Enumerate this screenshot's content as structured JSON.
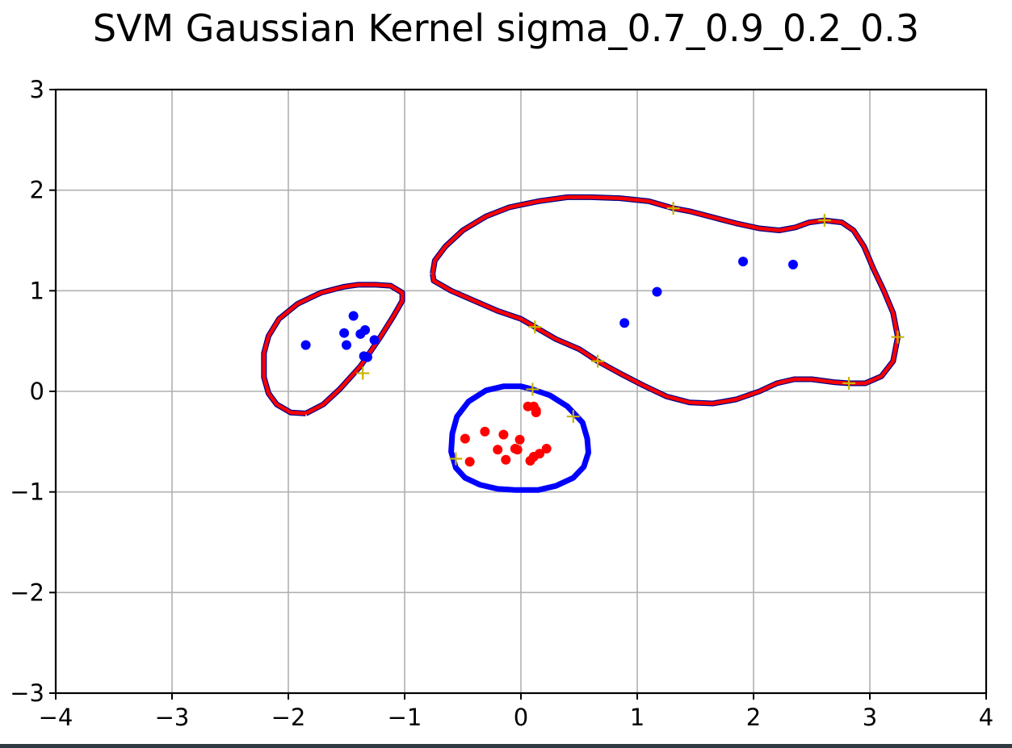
{
  "chart_data": {
    "type": "scatter",
    "title": "SVM Gaussian Kernel sigma_0.7_0.9_0.2_0.3",
    "xlabel": "",
    "ylabel": "",
    "xlim": [
      -4,
      4
    ],
    "ylim": [
      -3,
      3
    ],
    "grid": true,
    "x_ticks": [
      -4,
      -3,
      -2,
      -1,
      0,
      1,
      2,
      3,
      4
    ],
    "x_tick_labels": [
      "−4",
      "−3",
      "−2",
      "−1",
      "0",
      "1",
      "2",
      "3",
      "4"
    ],
    "y_ticks": [
      -3,
      -2,
      -1,
      0,
      1,
      2,
      3
    ],
    "y_tick_labels": [
      "−3",
      "−2",
      "−1",
      "0",
      "1",
      "2",
      "3"
    ],
    "series": [
      {
        "color": "#0000ff",
        "marker": "dot",
        "points": [
          [
            -1.44,
            0.75
          ],
          [
            -1.52,
            0.58
          ],
          [
            -1.38,
            0.57
          ],
          [
            -1.34,
            0.61
          ],
          [
            -1.5,
            0.46
          ],
          [
            -1.26,
            0.51
          ],
          [
            -1.35,
            0.35
          ],
          [
            -1.32,
            0.34
          ],
          [
            -1.85,
            0.46
          ],
          [
            0.89,
            0.68
          ],
          [
            1.17,
            0.99
          ],
          [
            1.91,
            1.29
          ],
          [
            2.34,
            1.26
          ]
        ]
      },
      {
        "color": "#ff0000",
        "marker": "dot",
        "points": [
          [
            0.06,
            -0.15
          ],
          [
            0.11,
            -0.15
          ],
          [
            0.13,
            -0.19
          ],
          [
            0.13,
            -0.21
          ],
          [
            -0.31,
            -0.4
          ],
          [
            -0.15,
            -0.43
          ],
          [
            -0.01,
            -0.48
          ],
          [
            -0.48,
            -0.47
          ],
          [
            -0.05,
            -0.57
          ],
          [
            -0.2,
            -0.58
          ],
          [
            -0.03,
            -0.58
          ],
          [
            0.22,
            -0.57
          ],
          [
            0.16,
            -0.62
          ],
          [
            0.11,
            -0.65
          ],
          [
            -0.13,
            -0.68
          ],
          [
            0.08,
            -0.69
          ],
          [
            -0.44,
            -0.7
          ]
        ]
      },
      {
        "color": "#c8b400",
        "marker": "plus",
        "points": [
          [
            -1.36,
            0.18
          ],
          [
            0.12,
            0.64
          ],
          [
            0.66,
            0.3
          ],
          [
            1.31,
            1.82
          ],
          [
            2.61,
            1.7
          ],
          [
            2.82,
            0.08
          ],
          [
            3.24,
            0.54
          ],
          [
            0.1,
            0.02
          ],
          [
            0.45,
            -0.25
          ],
          [
            -0.56,
            -0.67
          ]
        ]
      }
    ],
    "boundaries": [
      {
        "color": "#ff0000",
        "edge_color": "#00008b",
        "points": [
          [
            -1.85,
            -0.22
          ],
          [
            -1.98,
            -0.21
          ],
          [
            -2.1,
            -0.13
          ],
          [
            -2.17,
            -0.02
          ],
          [
            -2.21,
            0.14
          ],
          [
            -2.21,
            0.38
          ],
          [
            -2.17,
            0.55
          ],
          [
            -2.08,
            0.72
          ],
          [
            -1.92,
            0.87
          ],
          [
            -1.72,
            0.98
          ],
          [
            -1.52,
            1.04
          ],
          [
            -1.4,
            1.06
          ],
          [
            -1.25,
            1.06
          ],
          [
            -1.12,
            1.05
          ],
          [
            -1.02,
            0.98
          ],
          [
            -1.02,
            0.9
          ],
          [
            -1.1,
            0.74
          ],
          [
            -1.22,
            0.52
          ],
          [
            -1.38,
            0.25
          ],
          [
            -1.56,
            0.02
          ],
          [
            -1.7,
            -0.13
          ],
          [
            -1.85,
            -0.22
          ]
        ]
      },
      {
        "color": "#ff0000",
        "edge_color": "#00008b",
        "points": [
          [
            -0.76,
            1.17
          ],
          [
            -0.75,
            1.1
          ],
          [
            -0.6,
            1.0
          ],
          [
            -0.4,
            0.9
          ],
          [
            -0.2,
            0.8
          ],
          [
            0.0,
            0.72
          ],
          [
            0.12,
            0.64
          ],
          [
            0.3,
            0.52
          ],
          [
            0.5,
            0.42
          ],
          [
            0.66,
            0.3
          ],
          [
            0.85,
            0.18
          ],
          [
            1.05,
            0.06
          ],
          [
            1.25,
            -0.05
          ],
          [
            1.45,
            -0.11
          ],
          [
            1.65,
            -0.12
          ],
          [
            1.85,
            -0.08
          ],
          [
            2.05,
            0.0
          ],
          [
            2.2,
            0.08
          ],
          [
            2.35,
            0.12
          ],
          [
            2.5,
            0.12
          ],
          [
            2.7,
            0.09
          ],
          [
            2.82,
            0.08
          ],
          [
            2.96,
            0.08
          ],
          [
            3.1,
            0.15
          ],
          [
            3.2,
            0.3
          ],
          [
            3.24,
            0.54
          ],
          [
            3.2,
            0.78
          ],
          [
            3.12,
            1.0
          ],
          [
            3.03,
            1.22
          ],
          [
            2.95,
            1.44
          ],
          [
            2.86,
            1.6
          ],
          [
            2.76,
            1.68
          ],
          [
            2.61,
            1.7
          ],
          [
            2.48,
            1.68
          ],
          [
            2.36,
            1.63
          ],
          [
            2.22,
            1.6
          ],
          [
            2.05,
            1.62
          ],
          [
            1.85,
            1.67
          ],
          [
            1.65,
            1.73
          ],
          [
            1.45,
            1.79
          ],
          [
            1.31,
            1.82
          ],
          [
            1.1,
            1.89
          ],
          [
            0.85,
            1.92
          ],
          [
            0.6,
            1.93
          ],
          [
            0.4,
            1.93
          ],
          [
            0.15,
            1.89
          ],
          [
            -0.1,
            1.83
          ],
          [
            -0.3,
            1.74
          ],
          [
            -0.5,
            1.6
          ],
          [
            -0.65,
            1.44
          ],
          [
            -0.74,
            1.3
          ],
          [
            -0.76,
            1.17
          ]
        ]
      },
      {
        "color": "#0000ff",
        "edge_color": "#0000ff",
        "points": [
          [
            -0.06,
            -0.98
          ],
          [
            -0.2,
            -0.97
          ],
          [
            -0.35,
            -0.93
          ],
          [
            -0.48,
            -0.86
          ],
          [
            -0.56,
            -0.76
          ],
          [
            -0.6,
            -0.6
          ],
          [
            -0.59,
            -0.42
          ],
          [
            -0.55,
            -0.25
          ],
          [
            -0.45,
            -0.1
          ],
          [
            -0.3,
            0.01
          ],
          [
            -0.15,
            0.05
          ],
          [
            0.0,
            0.05
          ],
          [
            0.1,
            0.02
          ],
          [
            0.25,
            -0.04
          ],
          [
            0.4,
            -0.15
          ],
          [
            0.53,
            -0.31
          ],
          [
            0.57,
            -0.47
          ],
          [
            0.58,
            -0.61
          ],
          [
            0.54,
            -0.75
          ],
          [
            0.45,
            -0.86
          ],
          [
            0.3,
            -0.94
          ],
          [
            0.15,
            -0.98
          ],
          [
            -0.06,
            -0.98
          ]
        ]
      }
    ]
  }
}
